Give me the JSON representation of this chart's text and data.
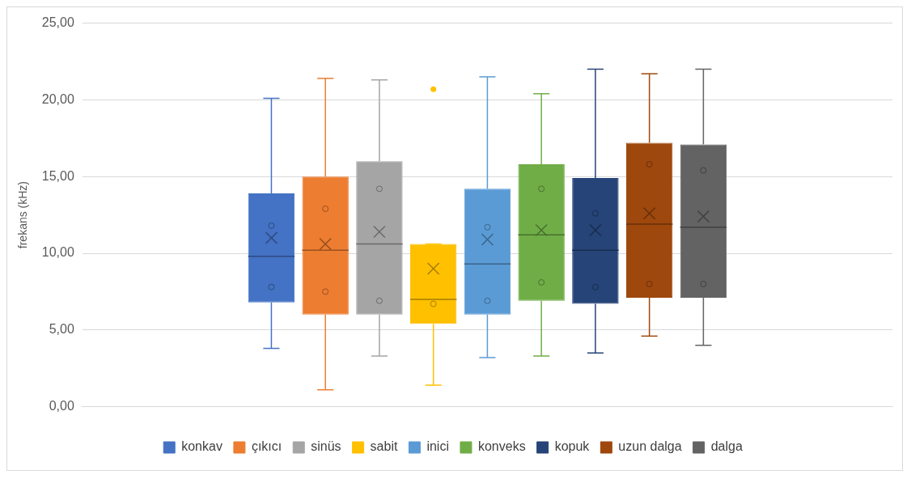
{
  "chart_data": {
    "type": "box",
    "ylabel": "frekans (kHz)",
    "categories": [
      null
    ],
    "ylim": [
      0,
      25
    ],
    "yticks": [
      {
        "value": 0,
        "label": "0,00"
      },
      {
        "value": 5,
        "label": "5,00"
      },
      {
        "value": 10,
        "label": "10,00"
      },
      {
        "value": 15,
        "label": "15,00"
      },
      {
        "value": 20,
        "label": "20,00"
      },
      {
        "value": 25,
        "label": "25,00"
      }
    ],
    "grid": "y",
    "legend": "bottom",
    "series": [
      {
        "name": "konkav",
        "color": "#4472c4",
        "boxes": [
          {
            "low": 3.8,
            "q1": 6.8,
            "median": 9.8,
            "q3": 13.9,
            "high": 20.1,
            "mean": 11.0,
            "outliers": [
              11.8,
              7.8
            ]
          }
        ]
      },
      {
        "name": "çıkıcı",
        "color": "#ed7d31",
        "boxes": [
          {
            "low": 1.1,
            "q1": 6.0,
            "median": 10.2,
            "q3": 15.0,
            "high": 21.4,
            "mean": 10.6,
            "outliers": [
              12.9,
              7.5
            ]
          }
        ]
      },
      {
        "name": "sinüs",
        "color": "#a5a5a5",
        "boxes": [
          {
            "low": 3.3,
            "q1": 6.0,
            "median": 10.6,
            "q3": 16.0,
            "high": 21.3,
            "mean": 11.4,
            "outliers": [
              14.2,
              6.9
            ]
          }
        ]
      },
      {
        "name": "sabit",
        "color": "#ffc000",
        "boxes": [
          {
            "low": 1.4,
            "q1": 5.4,
            "median": 7.0,
            "q3": 10.6,
            "high": 10.6,
            "mean": 9.0,
            "outliers": [
              20.7,
              6.7
            ]
          }
        ]
      },
      {
        "name": "inici",
        "color": "#5b9bd5",
        "boxes": [
          {
            "low": 3.2,
            "q1": 6.0,
            "median": 9.3,
            "q3": 14.2,
            "high": 21.5,
            "mean": 10.9,
            "outliers": [
              11.7,
              6.9
            ]
          }
        ]
      },
      {
        "name": "konveks",
        "color": "#70ad47",
        "boxes": [
          {
            "low": 3.3,
            "q1": 6.9,
            "median": 11.2,
            "q3": 15.8,
            "high": 20.4,
            "mean": 11.5,
            "outliers": [
              14.2,
              8.1
            ]
          }
        ]
      },
      {
        "name": "kopuk",
        "color": "#264478",
        "boxes": [
          {
            "low": 3.5,
            "q1": 6.7,
            "median": 10.2,
            "q3": 14.9,
            "high": 22.0,
            "mean": 11.5,
            "outliers": [
              12.6,
              7.8
            ]
          }
        ]
      },
      {
        "name": "uzun dalga",
        "color": "#9e480e",
        "boxes": [
          {
            "low": 4.6,
            "q1": 7.1,
            "median": 11.9,
            "q3": 17.2,
            "high": 21.7,
            "mean": 12.6,
            "outliers": [
              15.8,
              8.0
            ]
          }
        ]
      },
      {
        "name": "dalga",
        "color": "#636363",
        "boxes": [
          {
            "low": 4.0,
            "q1": 7.1,
            "median": 11.7,
            "q3": 17.1,
            "high": 22.0,
            "mean": 12.4,
            "outliers": [
              15.4,
              8.0
            ]
          }
        ]
      }
    ]
  }
}
